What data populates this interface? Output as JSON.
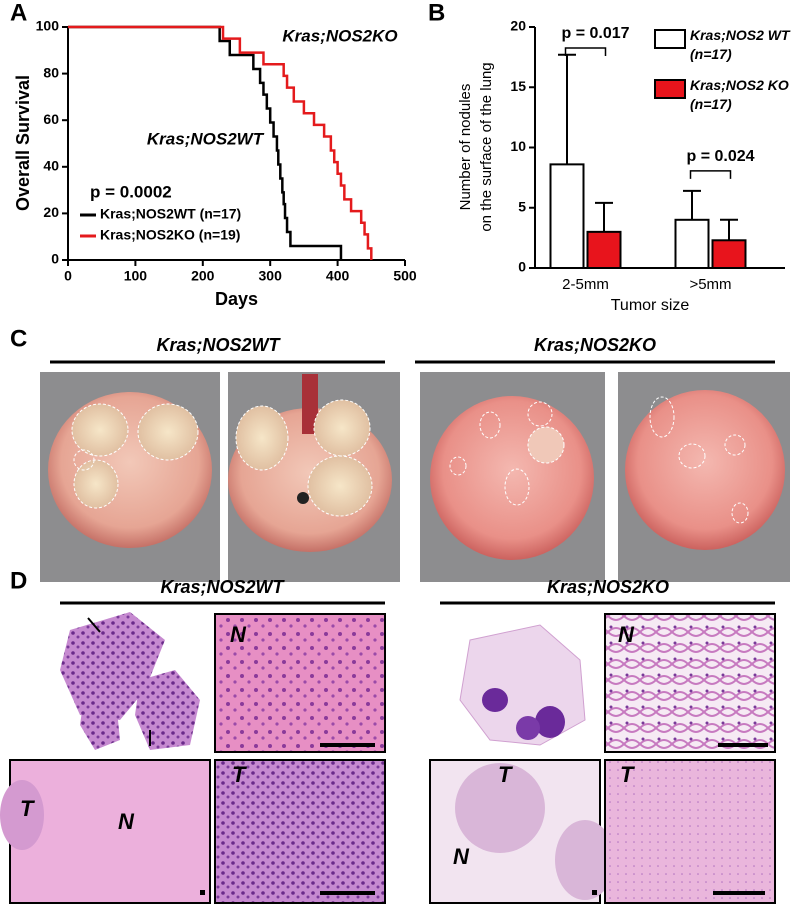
{
  "chart_data": [
    {
      "panel": "A",
      "type": "step",
      "x_label": "Days",
      "y_label": "Overall Survival",
      "xlim": [
        0,
        500
      ],
      "xticks": [
        0,
        100,
        200,
        300,
        400,
        500
      ],
      "ylim": [
        0,
        100
      ],
      "yticks": [
        0,
        20,
        40,
        60,
        80,
        100
      ],
      "annotations": [
        "Kras;NOS2KO",
        "Kras;NOS2WT",
        "p = 0.0002"
      ],
      "series": [
        {
          "name": "Kras;NOS2WT (n=17)",
          "color": "#000000",
          "x": [
            0,
            225,
            240,
            275,
            285,
            290,
            295,
            300,
            305,
            310,
            312,
            315,
            318,
            320,
            322,
            325,
            330,
            405
          ],
          "values": [
            100,
            94,
            88,
            82,
            76,
            71,
            65,
            59,
            53,
            47,
            41,
            35,
            29,
            24,
            18,
            12,
            6,
            0
          ]
        },
        {
          "name": "Kras;NOS2KO (n=19)",
          "color": "#e41a1c",
          "x": [
            0,
            230,
            255,
            290,
            320,
            325,
            335,
            350,
            365,
            380,
            390,
            395,
            400,
            405,
            410,
            420,
            435,
            440,
            445,
            450
          ],
          "values": [
            100,
            95,
            89,
            84,
            79,
            74,
            68,
            63,
            58,
            53,
            47,
            42,
            37,
            32,
            26,
            21,
            16,
            11,
            5,
            0
          ]
        }
      ]
    },
    {
      "panel": "B",
      "type": "bar",
      "x_label": "Tumor size",
      "y_label": [
        "Number of nodules",
        "on the surface of the lung"
      ],
      "categories": [
        "2-5mm",
        ">5mm"
      ],
      "ylim": [
        0,
        20
      ],
      "yticks": [
        0,
        5,
        10,
        15,
        20
      ],
      "annotations": [
        "p = 0.017",
        "p = 0.024"
      ],
      "series": [
        {
          "name": "Kras;NOS2 WT (n=17)",
          "color": "#ffffff",
          "values": [
            8.6,
            4.0
          ],
          "errors": [
            9.1,
            2.4
          ]
        },
        {
          "name": "Kras;NOS2 KO (n=17)",
          "color": "#e8141c",
          "values": [
            3.0,
            2.3
          ],
          "errors": [
            2.4,
            1.7
          ]
        }
      ]
    }
  ],
  "panel_c": {
    "label": "C",
    "groups": [
      "Kras;NOS2WT",
      "Kras;NOS2KO"
    ]
  },
  "panel_d": {
    "label": "D",
    "groups": [
      "Kras;NOS2WT",
      "Kras;NOS2KO"
    ],
    "image_labels": [
      "N",
      "N",
      "T",
      "N",
      "T",
      "T",
      "N",
      "T"
    ]
  }
}
